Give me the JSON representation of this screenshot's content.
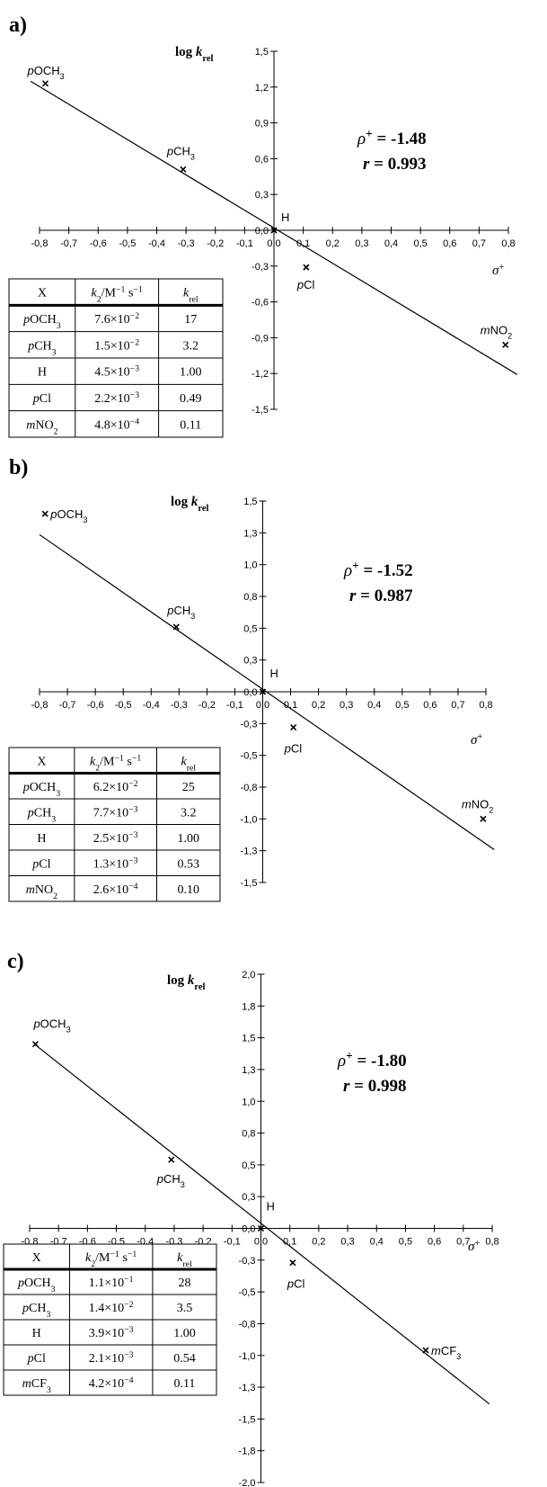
{
  "chart_data": [
    {
      "type": "scatter",
      "panel_label": "a)",
      "ylabel_main": "log k",
      "ylabel_sub": "rel",
      "xlabel": "σ+",
      "xlim": [
        -0.8,
        0.8
      ],
      "ylim": [
        -1.5,
        1.5
      ],
      "x_ticks": [
        "-0,8",
        "-0,7",
        "-0,6",
        "-0,5",
        "-0,4",
        "-0,3",
        "-0,2",
        "-0,1",
        "0,0",
        "0,1",
        "0,2",
        "0,3",
        "0,4",
        "0,5",
        "0,6",
        "0,7",
        "0,8"
      ],
      "y_ticks": [
        "1,5",
        "1,2",
        "0,9",
        "0,6",
        "0,3",
        "0,0",
        "-0,3",
        "-0,6",
        "-0,9",
        "-1,2",
        "-1,5"
      ],
      "points": [
        {
          "label": "pOCH3",
          "x": -0.78,
          "y": 1.23
        },
        {
          "label": "pCH3",
          "x": -0.31,
          "y": 0.51
        },
        {
          "label": "H",
          "x": 0.0,
          "y": 0.0
        },
        {
          "label": "pCl",
          "x": 0.11,
          "y": -0.31
        },
        {
          "label": "mNO2",
          "x": 0.79,
          "y": -0.96
        }
      ],
      "fit": {
        "slope": -1.48,
        "intercept": 0.02,
        "x_range": [
          -0.83,
          0.83
        ]
      },
      "rho_label": "ρ+ = -1.48",
      "r_label": "r = 0.993",
      "table": {
        "headers": [
          "X",
          "k2/M−1 s−1",
          "krel"
        ],
        "rows": [
          [
            "pOCH3",
            "7.6×10−2",
            "17"
          ],
          [
            "pCH3",
            "1.5×10−2",
            "3.2"
          ],
          [
            "H",
            "4.5×10−3",
            "1.00"
          ],
          [
            "pCl",
            "2.2×10−3",
            "0.49"
          ],
          [
            "mNO2",
            "4.8×10−4",
            "0.11"
          ]
        ]
      }
    },
    {
      "type": "scatter",
      "panel_label": "b)",
      "ylabel_main": "log k",
      "ylabel_sub": "rel",
      "xlabel": "σ+",
      "xlim": [
        -0.8,
        0.8
      ],
      "ylim": [
        -1.5,
        1.5
      ],
      "x_ticks": [
        "-0,8",
        "-0,7",
        "-0,6",
        "-0,5",
        "-0,4",
        "-0,3",
        "-0,2",
        "-0,1",
        "0,0",
        "0,1",
        "0,2",
        "0,3",
        "0,4",
        "0,5",
        "0,6",
        "0,7",
        "0,8"
      ],
      "y_ticks": [
        "1,5",
        "1,3",
        "1,0",
        "0,8",
        "0,5",
        "0,3",
        "0,0",
        "-0,3",
        "-0,5",
        "-0,8",
        "-1,0",
        "-1,3",
        "-1,5"
      ],
      "points": [
        {
          "label": "pOCH3",
          "x": -0.78,
          "y": 1.4
        },
        {
          "label": "pCH3",
          "x": -0.31,
          "y": 0.51
        },
        {
          "label": "H",
          "x": 0.0,
          "y": 0.0
        },
        {
          "label": "pCl",
          "x": 0.11,
          "y": -0.28
        },
        {
          "label": "mNO2",
          "x": 0.79,
          "y": -1.0
        }
      ],
      "fit": {
        "slope": -1.52,
        "intercept": 0.02,
        "x_range": [
          -0.8,
          0.83
        ]
      },
      "rho_label": "ρ+ = -1.52",
      "r_label": "r = 0.987",
      "table": {
        "headers": [
          "X",
          "k2/M−1 s−1",
          "krel"
        ],
        "rows": [
          [
            "pOCH3",
            "6.2×10−2",
            "25"
          ],
          [
            "pCH3",
            "7.7×10−3",
            "3.2"
          ],
          [
            "H",
            "2.5×10−3",
            "1.00"
          ],
          [
            "pCl",
            "1.3×10−3",
            "0.53"
          ],
          [
            "mNO2",
            "2.6×10−4",
            "0.10"
          ]
        ]
      }
    },
    {
      "type": "scatter",
      "panel_label": "c)",
      "ylabel_main": "log k",
      "ylabel_sub": "rel",
      "xlabel": "σ+",
      "xlim": [
        -0.8,
        0.8
      ],
      "ylim": [
        -2.0,
        2.0
      ],
      "x_ticks": [
        "-0,8",
        "-0,7",
        "-0,6",
        "-0,5",
        "-0,4",
        "-0,3",
        "-0,2",
        "-0,1",
        "0,0",
        "0,1",
        "0,2",
        "0,3",
        "0,4",
        "0,5",
        "0,6",
        "0,7",
        "0,8"
      ],
      "y_ticks": [
        "2,0",
        "1,8",
        "1,5",
        "1,3",
        "1,0",
        "0,8",
        "0,5",
        "0,3",
        "0,0",
        "-0,3",
        "-0,5",
        "-0,8",
        "-1,0",
        "-1,3",
        "-1,5",
        "-1,8",
        "-2,0"
      ],
      "points": [
        {
          "label": "pOCH3",
          "x": -0.78,
          "y": 1.45
        },
        {
          "label": "pCH3",
          "x": -0.31,
          "y": 0.54
        },
        {
          "label": "H",
          "x": 0.0,
          "y": 0.0
        },
        {
          "label": "pCl",
          "x": 0.11,
          "y": -0.27
        },
        {
          "label": "mCF3",
          "x": 0.57,
          "y": -0.96
        }
      ],
      "fit": {
        "slope": -1.8,
        "intercept": 0.04,
        "x_range": [
          -0.78,
          0.79
        ]
      },
      "rho_label": "ρ+ = -1.80",
      "r_label": "r = 0.998",
      "table": {
        "headers": [
          "X",
          "k2/M−1 s−1",
          "krel"
        ],
        "rows": [
          [
            "pOCH3",
            "1.1×10−1",
            "28"
          ],
          [
            "pCH3",
            "1.4×10−2",
            "3.5"
          ],
          [
            "H",
            "3.9×10−3",
            "1.00"
          ],
          [
            "pCl",
            "2.1×10−3",
            "0.54"
          ],
          [
            "mCF3",
            "4.2×10−4",
            "0.11"
          ]
        ]
      }
    }
  ]
}
